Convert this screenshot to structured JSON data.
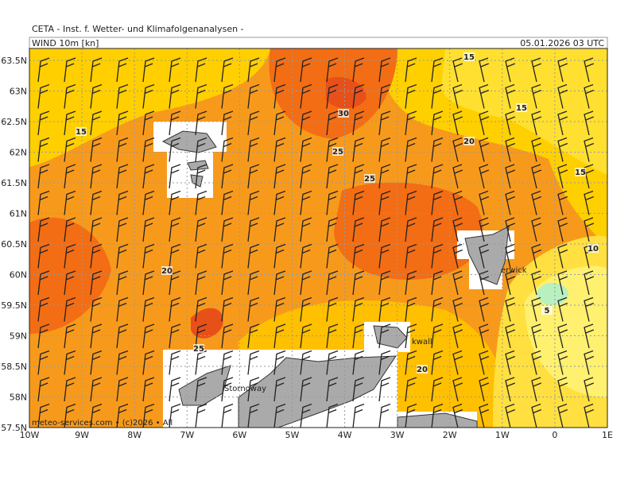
{
  "header": {
    "institute": "CETA - Inst. f. Wetter- und Klimafolgenanalysen -",
    "field": "WIND 10m [kn]",
    "time": "05.01.2026 03 UTC"
  },
  "map": {
    "lat_labels": [
      "63.5N",
      "63N",
      "62.5N",
      "62N",
      "61.5N",
      "61N",
      "60.5N",
      "60N",
      "59.5N",
      "59N",
      "58.5N",
      "58N",
      "57.5N"
    ],
    "lon_labels": [
      "10W",
      "9W",
      "8W",
      "7W",
      "6W",
      "5W",
      "4W",
      "3W",
      "2W",
      "1W",
      "0",
      "1E"
    ],
    "contour_labels": [
      15,
      15,
      15,
      30,
      20,
      25,
      25,
      15,
      10,
      20,
      5,
      25,
      20
    ],
    "places": [
      "erwick",
      "kwall",
      "Stornoway"
    ],
    "credit": "meteo-services.com • (c)2026 • All"
  }
}
